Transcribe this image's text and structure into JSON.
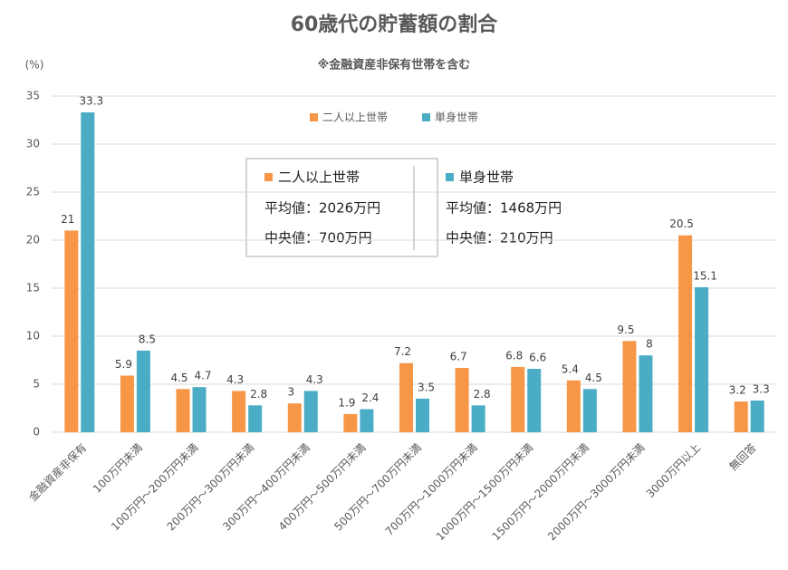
{
  "chart_data": {
    "type": "bar",
    "title": "60歳代の貯蓄額の割合",
    "subtitle": "※金融資産非保有世帯を含む",
    "y_label": "(%)",
    "categories": [
      "金融資産非保有",
      "100万円未満",
      "100万円～200万円未満",
      "200万円～300万円未満",
      "300万円～400万円未満",
      "400万円～500万円未満",
      "500万円～700万円未満",
      "700万円～1000万円未満",
      "1000万円～1500万円未満",
      "1500万円～2000万円未満",
      "2000万円～3000万円未満",
      "3000万円以上",
      "無回答"
    ],
    "series": [
      {
        "name": "二人以上世帯",
        "color": "#f79646",
        "values": [
          21,
          5.9,
          4.5,
          4.3,
          3,
          1.9,
          7.2,
          6.7,
          6.8,
          5.4,
          9.5,
          20.5,
          3.2
        ]
      },
      {
        "name": "単身世帯",
        "color": "#4bacc6",
        "values": [
          33.3,
          8.5,
          4.7,
          2.8,
          4.3,
          2.4,
          3.5,
          2.8,
          6.6,
          4.5,
          8,
          15.1,
          3.3
        ]
      }
    ],
    "summary": [
      [
        "平均値：2026万円",
        "中央値：700万円"
      ],
      [
        "平均値：1468万円",
        "中央値：210万円"
      ]
    ],
    "ylim": [
      0,
      35
    ],
    "yticks": [
      0,
      5,
      10,
      15,
      20,
      25,
      30,
      35
    ],
    "grid": true,
    "legend": "top"
  }
}
